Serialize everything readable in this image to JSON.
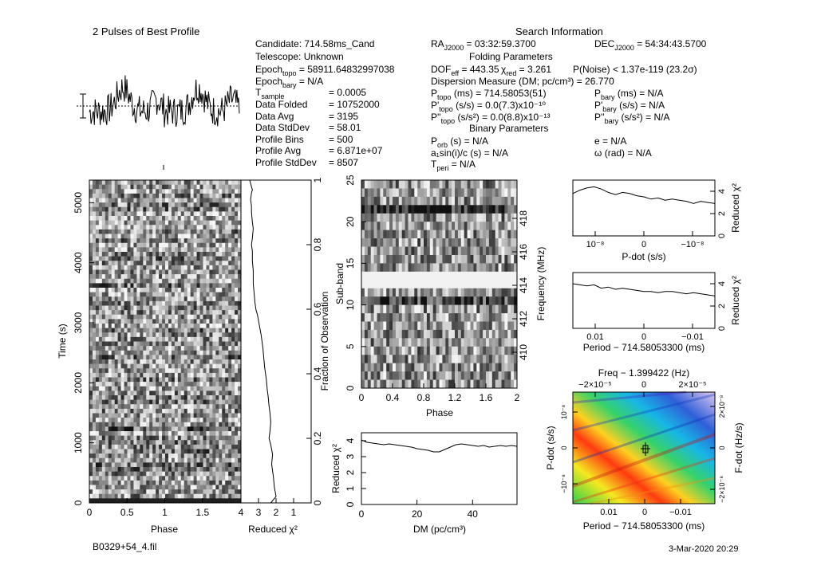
{
  "profile_title": "2 Pulses of Best Profile",
  "search_title": "Search Information",
  "info": {
    "candidate": "Candidate:  714.58ms_Cand",
    "telescope": "Telescope:  Unknown",
    "epoch_topo_label": "Epoch",
    "epoch_topo_sub": "topo",
    "epoch_topo_val": " = 58911.64832997038",
    "epoch_bary_label": "Epoch",
    "epoch_bary_sub": "bary",
    "epoch_bary_val": " = N/A",
    "tsample_label": "T",
    "tsample_sub": "sample",
    "tsample_val": "=    0.0005",
    "data_folded": "Data Folded",
    "data_folded_val": "=    10752000",
    "data_avg": "Data Avg",
    "data_avg_val": "=    3195",
    "data_std": "Data StdDev",
    "data_std_val": "=    58.01",
    "prof_bins": "Profile Bins",
    "prof_bins_val": "=    500",
    "prof_avg": "Profile Avg",
    "prof_avg_val": "=    6.871e+07",
    "prof_std": "Profile StdDev",
    "prof_std_val": "=    8507",
    "ra": "RA",
    "ra_sub": "J2000",
    "ra_val": " = 03:32:59.3700",
    "dec": "DEC",
    "dec_sub": "J2000",
    "dec_val": " = 54:34:43.5700",
    "folding_title": "Folding Parameters",
    "dof": "DOF",
    "dof_sub": "eff",
    "dof_val": " = 443.35",
    "chi_lbl": "χ",
    "chi_sub": "red",
    "chi_val": " = 3.261",
    "pnoise": "P(Noise) < 1.37e-119   (23.2σ)",
    "dm": "Dispersion Measure (DM; pc/cm³) = 26.770",
    "ptopo": "P",
    "ptopo_sub": "topo",
    "ptopo_val": " (ms)  =  714.58053(51)",
    "pbary": "P",
    "pbary_sub": "bary",
    "pbary_val": " (ms) = N/A",
    "pdtopo": "P'",
    "pdtopo_sub": "topo",
    "pdtopo_val": " (s/s) = 0.0(7.3)x10⁻¹⁰",
    "pdbary": "P'",
    "pdbary_sub": "bary",
    "pdbary_val": " (s/s) = N/A",
    "pddtopo": "P''",
    "pddtopo_sub": "topo",
    "pddtopo_val": " (s/s²) = 0.0(8.8)x10⁻¹³",
    "pddbary": "P''",
    "pddbary_sub": "bary",
    "pddbary_val": " (s/s²) = N/A",
    "binary_title": "Binary Parameters",
    "porb": "P",
    "porb_sub": "orb",
    "porb_val": " (s) = N/A",
    "ecc": "e = N/A",
    "asini": "a₁sin(i)/c (s) = N/A",
    "omega": "ω (rad) = N/A",
    "tperi": "T",
    "tperi_sub": "peri",
    "tperi_val": " = N/A"
  },
  "footer": {
    "filename": "B0329+54_4.fil",
    "date": "3-Mar-2020 20:29"
  },
  "colors": {
    "axis": "#000000",
    "grey_dark": "#222222",
    "grey_light": "#f2f2f2"
  },
  "chart_data": [
    {
      "id": "time_phase",
      "type": "heatmap",
      "xlabel": "Phase",
      "ylabel": "Time (s)",
      "xticks": [
        "0",
        "0.5",
        "1",
        "1.5"
      ],
      "yticks": [
        "0",
        "1000",
        "2000",
        "3000",
        "4000",
        "5000"
      ],
      "xlim": [
        0,
        2
      ],
      "ylim": [
        0,
        5376
      ]
    },
    {
      "id": "time_chi",
      "type": "line",
      "xlabel": "Reduced χ²",
      "ylabel": "Fraction of Observation",
      "xticks": [
        "4",
        "3",
        "2",
        "1"
      ],
      "yticks": [
        "0",
        "0.2",
        "0.4",
        "0.6",
        "0.8",
        "1"
      ],
      "x": [
        2.3,
        2.0,
        2.1,
        2.15,
        2.2,
        2.25,
        2.2,
        2.3,
        2.4,
        2.35,
        2.3,
        2.35,
        2.4,
        2.45,
        2.5,
        2.55,
        2.6,
        2.65,
        2.7,
        2.75,
        2.8,
        2.85,
        2.95,
        3.05,
        3.15,
        3.2,
        3.25,
        3.3,
        3.3,
        3.3,
        3.35,
        3.35,
        3.4,
        3.35,
        3.3,
        3.35,
        3.4,
        3.4,
        3.45,
        3.4,
        3.35,
        3.4,
        3.45,
        3.5
      ],
      "y": [
        0.0,
        0.02,
        0.05,
        0.08,
        0.1,
        0.12,
        0.15,
        0.18,
        0.2,
        0.22,
        0.25,
        0.28,
        0.3,
        0.33,
        0.35,
        0.38,
        0.4,
        0.42,
        0.45,
        0.48,
        0.5,
        0.52,
        0.55,
        0.58,
        0.6,
        0.62,
        0.65,
        0.68,
        0.7,
        0.72,
        0.75,
        0.78,
        0.8,
        0.82,
        0.85,
        0.87,
        0.9,
        0.92,
        0.94,
        0.96,
        0.97,
        0.98,
        0.99,
        1.0
      ]
    },
    {
      "id": "subband",
      "type": "heatmap",
      "xlabel": "Phase",
      "ylabel": "Sub-band",
      "y2label": "Frequency (MHz)",
      "xticks": [
        "0",
        "0.4",
        "0.8",
        "1.2",
        "1.6",
        "2"
      ],
      "yticks": [
        "0",
        "5",
        "10",
        "15",
        "20",
        "25"
      ],
      "y2ticks": [
        "410",
        "412",
        "414",
        "416",
        "418"
      ]
    },
    {
      "id": "dm_chi",
      "type": "line",
      "xlabel": "DM (pc/cm³)",
      "ylabel": "Reduced χ²",
      "xticks": [
        "0",
        "20",
        "40"
      ],
      "yticks": [
        "0",
        "1",
        "2",
        "3",
        "4"
      ],
      "x": [
        0,
        2,
        4,
        6,
        8,
        10,
        12,
        14,
        16,
        18,
        20,
        22,
        24,
        26,
        28,
        30,
        32,
        34,
        36,
        38,
        40,
        42,
        44,
        46,
        48,
        50,
        52,
        54,
        56
      ],
      "y": [
        4.05,
        3.9,
        3.85,
        3.8,
        3.75,
        3.8,
        3.75,
        3.7,
        3.65,
        3.6,
        3.5,
        3.45,
        3.4,
        3.3,
        3.3,
        3.45,
        3.6,
        3.75,
        3.8,
        3.75,
        3.7,
        3.65,
        3.7,
        3.6,
        3.65,
        3.7,
        3.65,
        3.7,
        3.65
      ]
    },
    {
      "id": "pdot_chi",
      "type": "line",
      "xlabel": "P-dot (s/s)",
      "ylabel": "Reduced χ²",
      "xticks": [
        "10⁻⁸",
        "0",
        "−10⁻⁸"
      ],
      "yticks": [
        "0",
        "2",
        "4"
      ],
      "x": [
        0,
        1,
        2,
        3,
        4,
        5,
        6,
        7,
        8,
        9,
        10,
        11,
        12,
        13,
        14,
        15,
        16,
        17,
        18,
        19,
        20
      ],
      "y": [
        3.8,
        4.1,
        4.3,
        4.4,
        4.2,
        3.9,
        3.7,
        3.9,
        3.8,
        3.6,
        3.5,
        3.3,
        3.4,
        3.2,
        3.3,
        3.2,
        3.1,
        2.9,
        3.1,
        3.0,
        2.9
      ]
    },
    {
      "id": "period_chi",
      "type": "line",
      "xlabel": "Period − 714.58053300 (ms)",
      "ylabel": "Reduced χ²",
      "xticks": [
        "0.01",
        "0",
        "−0.01"
      ],
      "yticks": [
        "0",
        "2",
        "4"
      ],
      "x": [
        0,
        1,
        2,
        3,
        4,
        5,
        6,
        7,
        8,
        9,
        10,
        11,
        12,
        13,
        14,
        15,
        16,
        17,
        18,
        19,
        20
      ],
      "y": [
        4.0,
        3.9,
        3.8,
        3.9,
        3.6,
        3.7,
        3.5,
        3.6,
        3.5,
        3.4,
        3.3,
        3.3,
        3.2,
        3.3,
        3.3,
        3.2,
        3.1,
        3.2,
        3.1,
        3.0,
        2.9
      ]
    },
    {
      "id": "ppdot",
      "type": "heatmap",
      "title": "Freq − 1.399422 (Hz)",
      "xlabel": "Period − 714.58053300 (ms)",
      "ylabel": "P-dot (s/s)",
      "y2label": "F-dot (Hz/s)",
      "xticks": [
        "0.01",
        "0",
        "−0.01"
      ],
      "x2ticks": [
        "−2×10⁻⁵",
        "0",
        "2×10⁻⁵"
      ],
      "yticks": [
        "10⁻⁸",
        "0",
        "−10⁻⁸"
      ],
      "y2ticks": [
        "−2×10⁻⁸",
        "0",
        "2×10⁻⁸"
      ]
    }
  ]
}
